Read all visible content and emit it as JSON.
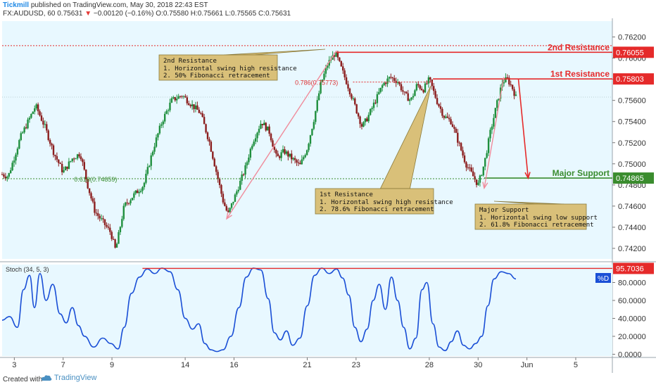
{
  "header": {
    "brand": "Tickmill",
    "published": "published on TradingView.com, May 30, 2018 22:43 EST",
    "symbol": "FX:AUDUSD, 60",
    "last": "0.75631",
    "change": "−0.00120 (−0.16%)",
    "ohlc": "O:0.75580 H:0.75661 L:0.75565 C:0.75631"
  },
  "footer": {
    "created_with": "Created with",
    "tradingview": "TradingView"
  },
  "colors": {
    "bull": "#1f8f3e",
    "bear": "#8b1e1e",
    "background": "#e8f8ff",
    "resistance": "#e52a2a",
    "support": "#3a8c2e",
    "stoch": "#1a4fd6",
    "note_bg": "#d9c079",
    "arrow_pink": "#f08c9c"
  },
  "chart_data": [
    {
      "type": "candlestick",
      "series_label": "FX:AUDUSD, 60",
      "y_ticks": [
        "0.76200",
        "0.76000",
        "0.75800",
        "0.75600",
        "0.75400",
        "0.75200",
        "0.75000",
        "0.74800",
        "0.74600",
        "0.74400",
        "0.74200"
      ],
      "y_tick_values": [
        0.762,
        0.76,
        0.758,
        0.756,
        0.754,
        0.752,
        0.75,
        0.748,
        0.746,
        0.744,
        0.742
      ],
      "ylim": [
        0.741,
        0.7635
      ],
      "x_ticks": [
        "3",
        "7",
        "9",
        "14",
        "16",
        "21",
        "23",
        "28",
        "30",
        "Jun",
        "5"
      ],
      "x_tick_positions": [
        0.02,
        0.1,
        0.18,
        0.3,
        0.38,
        0.5,
        0.58,
        0.7,
        0.78,
        0.86,
        0.94
      ],
      "price_path": [
        [
          0.0,
          0.749
        ],
        [
          0.01,
          0.7488
        ],
        [
          0.03,
          0.7525
        ],
        [
          0.055,
          0.7555
        ],
        [
          0.07,
          0.7535
        ],
        [
          0.085,
          0.751
        ],
        [
          0.1,
          0.7492
        ],
        [
          0.115,
          0.7505
        ],
        [
          0.128,
          0.751
        ],
        [
          0.14,
          0.748
        ],
        [
          0.152,
          0.7455
        ],
        [
          0.165,
          0.7445
        ],
        [
          0.178,
          0.7435
        ],
        [
          0.186,
          0.7418
        ],
        [
          0.2,
          0.746
        ],
        [
          0.215,
          0.747
        ],
        [
          0.232,
          0.748
        ],
        [
          0.248,
          0.7515
        ],
        [
          0.262,
          0.754
        ],
        [
          0.278,
          0.756
        ],
        [
          0.295,
          0.7565
        ],
        [
          0.312,
          0.7555
        ],
        [
          0.325,
          0.7548
        ],
        [
          0.34,
          0.752
        ],
        [
          0.352,
          0.749
        ],
        [
          0.362,
          0.7465
        ],
        [
          0.37,
          0.7452
        ],
        [
          0.382,
          0.747
        ],
        [
          0.398,
          0.7495
        ],
        [
          0.41,
          0.752
        ],
        [
          0.425,
          0.754
        ],
        [
          0.438,
          0.753
        ],
        [
          0.45,
          0.7505
        ],
        [
          0.462,
          0.7512
        ],
        [
          0.475,
          0.7505
        ],
        [
          0.488,
          0.7498
        ],
        [
          0.5,
          0.7515
        ],
        [
          0.512,
          0.7545
        ],
        [
          0.522,
          0.7575
        ],
        [
          0.534,
          0.7595
        ],
        [
          0.546,
          0.7605
        ],
        [
          0.556,
          0.759
        ],
        [
          0.566,
          0.7575
        ],
        [
          0.578,
          0.7555
        ],
        [
          0.59,
          0.7535
        ],
        [
          0.6,
          0.7545
        ],
        [
          0.612,
          0.756
        ],
        [
          0.624,
          0.7575
        ],
        [
          0.636,
          0.7582
        ],
        [
          0.648,
          0.7578
        ],
        [
          0.66,
          0.7565
        ],
        [
          0.67,
          0.756
        ],
        [
          0.68,
          0.7575
        ],
        [
          0.69,
          0.757
        ],
        [
          0.7,
          0.758
        ],
        [
          0.712,
          0.756
        ],
        [
          0.724,
          0.7545
        ],
        [
          0.736,
          0.754
        ],
        [
          0.748,
          0.752
        ],
        [
          0.76,
          0.75
        ],
        [
          0.772,
          0.7488
        ],
        [
          0.78,
          0.748
        ],
        [
          0.79,
          0.75
        ],
        [
          0.8,
          0.753
        ],
        [
          0.81,
          0.7555
        ],
        [
          0.82,
          0.7578
        ],
        [
          0.828,
          0.758
        ],
        [
          0.836,
          0.7572
        ],
        [
          0.842,
          0.7563
        ]
      ],
      "resistance_2": {
        "value": 0.76055,
        "label": "2nd Resistance",
        "price_label": "0.76055"
      },
      "resistance_1": {
        "value": 0.75803,
        "label": "1st Resistance",
        "price_label": "0.75803"
      },
      "support": {
        "value": 0.74865,
        "label": "Major Support",
        "price_label": "0.74865"
      },
      "fib_upper": {
        "label": "0.786(0.75773)",
        "value": 0.75773
      },
      "fib_lower": {
        "label": "0.618(0.74859)",
        "value": 0.74859
      },
      "annotations": [
        {
          "title": "2nd Resistance",
          "lines": [
            "1. Horizontal swing high resistance",
            "2. 50% Fibonacci retracement"
          ]
        },
        {
          "title": "1st Resistance",
          "lines": [
            "1. Horizontal swing high resistance",
            "2. 78.6% Fibonacci retracement"
          ]
        },
        {
          "title": "Major Support",
          "lines": [
            "1. Horizontal swing low support",
            "2. 61.8% Fibonacci retracement"
          ]
        }
      ]
    },
    {
      "type": "line",
      "series_label": "Stoch (34, 5, 3)",
      "legend": "%D",
      "y_ticks": [
        "80.0000",
        "60.0000",
        "40.0000",
        "20.0000",
        "0.0000"
      ],
      "y_tick_values": [
        80,
        60,
        40,
        20,
        0
      ],
      "ylim": [
        -2,
        100
      ],
      "level": {
        "value": 95.7036,
        "label": "95.7036"
      },
      "values": [
        [
          0.0,
          38
        ],
        [
          0.012,
          42
        ],
        [
          0.025,
          30
        ],
        [
          0.035,
          72
        ],
        [
          0.045,
          88
        ],
        [
          0.053,
          52
        ],
        [
          0.062,
          90
        ],
        [
          0.072,
          60
        ],
        [
          0.083,
          78
        ],
        [
          0.095,
          45
        ],
        [
          0.105,
          35
        ],
        [
          0.115,
          52
        ],
        [
          0.125,
          32
        ],
        [
          0.135,
          20
        ],
        [
          0.15,
          8
        ],
        [
          0.165,
          18
        ],
        [
          0.178,
          12
        ],
        [
          0.19,
          6
        ],
        [
          0.2,
          30
        ],
        [
          0.212,
          68
        ],
        [
          0.225,
          86
        ],
        [
          0.238,
          95
        ],
        [
          0.25,
          90
        ],
        [
          0.262,
          96
        ],
        [
          0.275,
          92
        ],
        [
          0.288,
          72
        ],
        [
          0.3,
          40
        ],
        [
          0.312,
          28
        ],
        [
          0.322,
          34
        ],
        [
          0.332,
          12
        ],
        [
          0.342,
          5
        ],
        [
          0.352,
          3
        ],
        [
          0.362,
          5
        ],
        [
          0.375,
          20
        ],
        [
          0.388,
          52
        ],
        [
          0.4,
          86
        ],
        [
          0.412,
          96
        ],
        [
          0.424,
          94
        ],
        [
          0.436,
          62
        ],
        [
          0.446,
          24
        ],
        [
          0.456,
          16
        ],
        [
          0.466,
          26
        ],
        [
          0.476,
          10
        ],
        [
          0.488,
          18
        ],
        [
          0.5,
          54
        ],
        [
          0.512,
          88
        ],
        [
          0.524,
          96
        ],
        [
          0.536,
          90
        ],
        [
          0.548,
          95
        ],
        [
          0.558,
          85
        ],
        [
          0.568,
          66
        ],
        [
          0.578,
          30
        ],
        [
          0.588,
          14
        ],
        [
          0.598,
          28
        ],
        [
          0.608,
          60
        ],
        [
          0.618,
          78
        ],
        [
          0.628,
          50
        ],
        [
          0.638,
          86
        ],
        [
          0.648,
          60
        ],
        [
          0.658,
          30
        ],
        [
          0.668,
          6
        ],
        [
          0.678,
          18
        ],
        [
          0.688,
          72
        ],
        [
          0.696,
          80
        ],
        [
          0.706,
          34
        ],
        [
          0.716,
          8
        ],
        [
          0.726,
          4
        ],
        [
          0.736,
          14
        ],
        [
          0.746,
          26
        ],
        [
          0.756,
          10
        ],
        [
          0.766,
          6
        ],
        [
          0.776,
          12
        ],
        [
          0.786,
          20
        ],
        [
          0.796,
          54
        ],
        [
          0.806,
          84
        ],
        [
          0.818,
          92
        ],
        [
          0.83,
          90
        ],
        [
          0.842,
          84
        ]
      ]
    }
  ]
}
